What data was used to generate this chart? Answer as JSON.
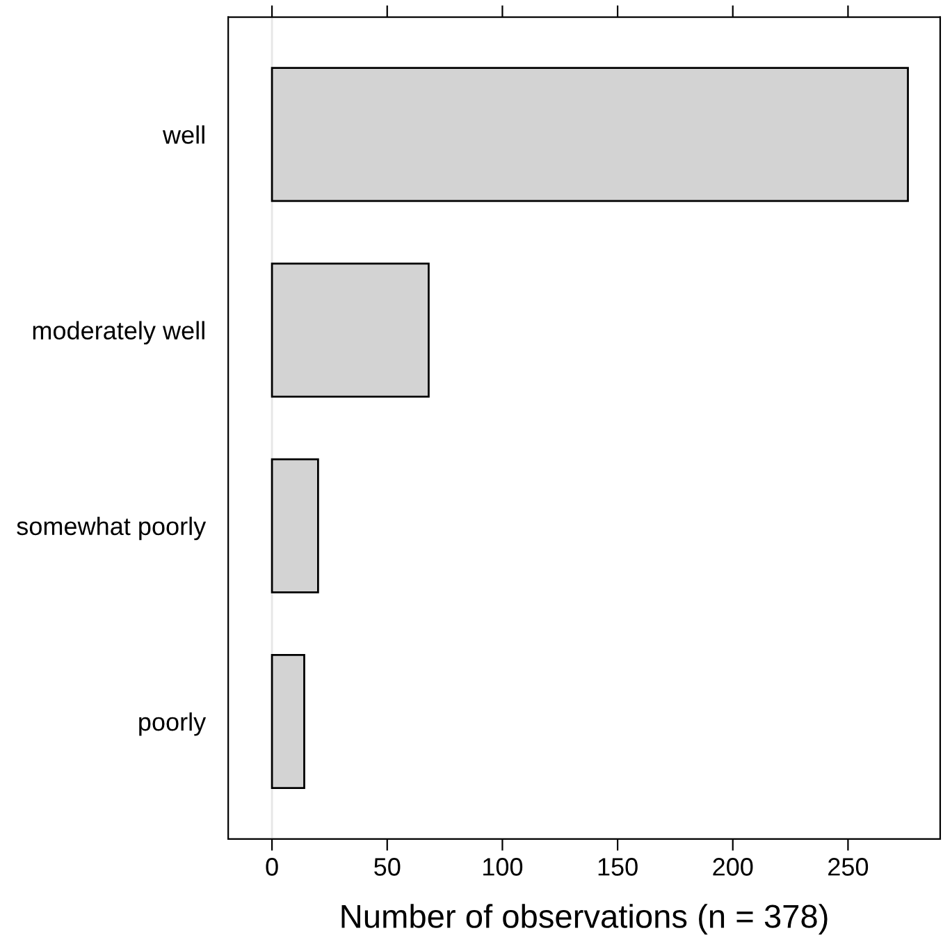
{
  "chart_data": {
    "type": "bar",
    "orientation": "horizontal",
    "xlabel": "Number of observations (n = 378)",
    "categories": [
      "well",
      "moderately well",
      "somewhat poorly",
      "poorly"
    ],
    "values": [
      276,
      68,
      20,
      14
    ],
    "color": "#d3d3d3",
    "xlim": [
      -19,
      290
    ],
    "xticks": [
      0,
      50,
      100,
      150,
      200,
      250
    ],
    "ref_lines": [
      {
        "axis": "x",
        "value": 0,
        "color": "#e6e6e6"
      }
    ],
    "grid": false,
    "legend": false
  }
}
